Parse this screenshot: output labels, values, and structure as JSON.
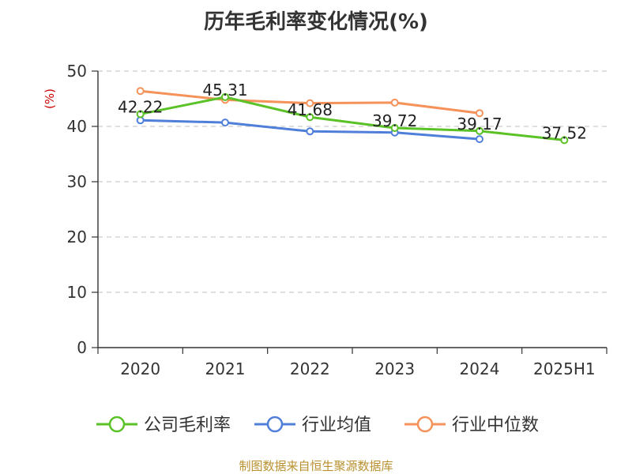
{
  "chart_data": {
    "type": "line",
    "title": "历年毛利率变化情况(%)",
    "ylabel": "(%)",
    "xlabel": "",
    "categories": [
      "2020",
      "2021",
      "2022",
      "2023",
      "2024",
      "2025H1"
    ],
    "ylim": [
      0,
      50
    ],
    "yticks": [
      0,
      10,
      20,
      30,
      40,
      50
    ],
    "grid": "horizontal dashed",
    "legend_position": "bottom",
    "series": [
      {
        "name": "公司毛利率",
        "color": "#5ac227",
        "values": [
          42.22,
          45.31,
          41.68,
          39.72,
          39.17,
          37.52
        ],
        "labels": [
          "42.22",
          "45.31",
          "41.68",
          "39.72",
          "39.17",
          "37.52"
        ]
      },
      {
        "name": "行业均值",
        "color": "#4f7fd9",
        "values": [
          41.1,
          40.7,
          39.1,
          38.9,
          37.7,
          null
        ]
      },
      {
        "name": "行业中位数",
        "color": "#f5925a",
        "values": [
          46.4,
          44.8,
          44.2,
          44.3,
          42.4,
          null
        ]
      }
    ]
  },
  "footer": {
    "source": "制图数据来自恒生聚源数据库"
  }
}
